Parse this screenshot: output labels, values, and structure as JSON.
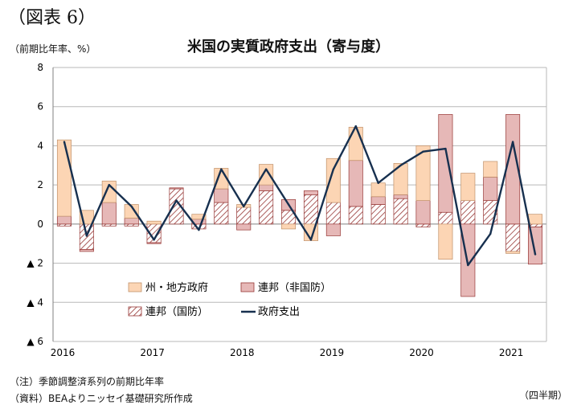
{
  "figure_label": "（図表 6）",
  "unit_label": "（前期比年率、%）",
  "notes": {
    "note1": "（注）季節調整済系列の前期比年率",
    "note2": "（資料）BEAよりニッセイ基礎研究所作成",
    "period": "（四半期）"
  },
  "colors": {
    "state_local": "#fcd5b4",
    "state_local_stroke": "#c0916a",
    "federal_nondefense": "#e6b8b7",
    "federal_nondefense_stroke": "#963634",
    "federal_defense_hatch": "#963634",
    "total_line": "#17304f",
    "grid": "#b8b8b8",
    "axis": "#808080"
  },
  "chart_data": {
    "type": "bar",
    "title": "米国の実質政府支出（寄与度）",
    "xlabel": "",
    "ylabel": "",
    "ylim": [
      -6,
      8
    ],
    "yticks": [
      8,
      6,
      4,
      2,
      0,
      -2,
      -4,
      -6
    ],
    "ytick_labels": [
      "8",
      "6",
      "4",
      "2",
      "0",
      "▲ 2",
      "▲ 4",
      "▲ 6"
    ],
    "grid": true,
    "x_year_labels": [
      {
        "label": "2016",
        "index": 0
      },
      {
        "label": "2017",
        "index": 4
      },
      {
        "label": "2018",
        "index": 8
      },
      {
        "label": "2019",
        "index": 12
      },
      {
        "label": "2020",
        "index": 16
      },
      {
        "label": "2021",
        "index": 20
      }
    ],
    "categories": [
      "2016Q1",
      "2016Q2",
      "2016Q3",
      "2016Q4",
      "2017Q1",
      "2017Q2",
      "2017Q3",
      "2017Q4",
      "2018Q1",
      "2018Q2",
      "2018Q3",
      "2018Q4",
      "2019Q1",
      "2019Q2",
      "2019Q3",
      "2019Q4",
      "2020Q1",
      "2020Q2",
      "2020Q3",
      "2020Q4",
      "2021Q1",
      "2021Q2"
    ],
    "series": [
      {
        "name": "州・地方政府",
        "kind": "bar",
        "values": [
          3.9,
          0.7,
          1.1,
          0.7,
          0.15,
          0.0,
          0.25,
          1.05,
          0.15,
          1.05,
          -0.25,
          -0.85,
          2.25,
          1.7,
          0.7,
          1.6,
          2.8,
          -1.8,
          1.4,
          0.8,
          -0.1,
          0.5
        ]
      },
      {
        "name": "連邦（非国防）",
        "kind": "bar",
        "values": [
          0.4,
          -0.1,
          1.1,
          0.3,
          -0.05,
          0.05,
          0.25,
          0.7,
          -0.3,
          0.3,
          0.55,
          0.2,
          -0.6,
          2.35,
          0.4,
          0.2,
          1.2,
          5.0,
          -3.7,
          1.2,
          5.6,
          -1.9
        ]
      },
      {
        "name": "連邦（国防）",
        "kind": "bar",
        "values": [
          -0.1,
          -1.3,
          -0.1,
          -0.1,
          -0.95,
          1.8,
          -0.25,
          1.1,
          0.85,
          1.7,
          0.7,
          1.5,
          1.1,
          0.9,
          1.0,
          1.3,
          -0.15,
          0.6,
          1.2,
          1.2,
          -1.4,
          -0.15
        ]
      },
      {
        "name": "政府支出",
        "kind": "line",
        "values": [
          4.2,
          -0.6,
          2.0,
          0.9,
          -0.8,
          1.2,
          -0.3,
          2.8,
          0.9,
          2.8,
          1.0,
          -0.8,
          2.8,
          5.0,
          2.1,
          3.0,
          3.7,
          3.85,
          -2.1,
          -0.5,
          4.2,
          -1.55
        ]
      }
    ],
    "legend_position": "lower-left"
  }
}
